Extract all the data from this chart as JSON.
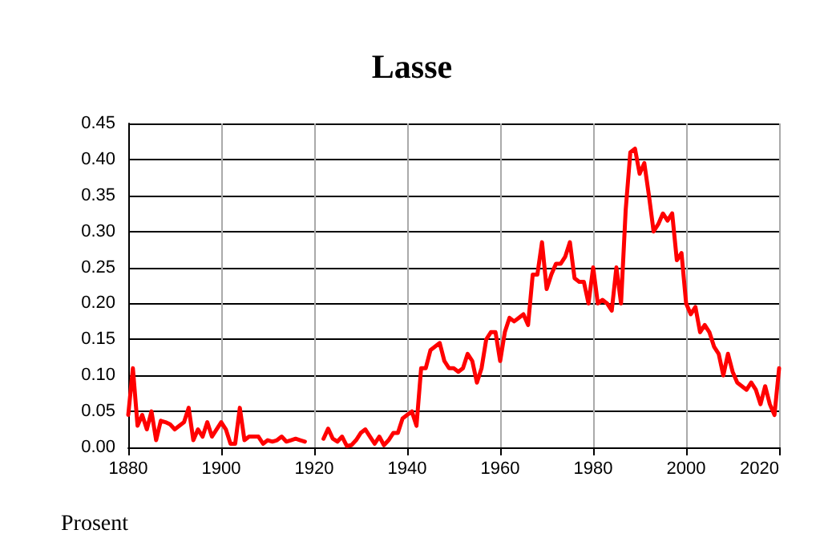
{
  "chart_data": {
    "type": "line",
    "title": "Lasse",
    "annotations": [
      "Prosent"
    ],
    "x": [
      1880,
      1881,
      1882,
      1883,
      1884,
      1885,
      1886,
      1887,
      1888,
      1889,
      1890,
      1891,
      1892,
      1893,
      1894,
      1895,
      1896,
      1897,
      1898,
      1899,
      1900,
      1901,
      1902,
      1903,
      1904,
      1905,
      1906,
      1907,
      1908,
      1909,
      1910,
      1911,
      1912,
      1913,
      1914,
      1915,
      1916,
      1917,
      1918,
      1919,
      1920,
      1921,
      1922,
      1923,
      1924,
      1925,
      1926,
      1927,
      1928,
      1929,
      1930,
      1931,
      1932,
      1933,
      1934,
      1935,
      1936,
      1937,
      1938,
      1939,
      1940,
      1941,
      1942,
      1943,
      1944,
      1945,
      1946,
      1947,
      1948,
      1949,
      1950,
      1951,
      1952,
      1953,
      1954,
      1955,
      1956,
      1957,
      1958,
      1959,
      1960,
      1961,
      1962,
      1963,
      1964,
      1965,
      1966,
      1967,
      1968,
      1969,
      1970,
      1971,
      1972,
      1973,
      1974,
      1975,
      1976,
      1977,
      1978,
      1979,
      1980,
      1981,
      1982,
      1983,
      1984,
      1985,
      1986,
      1987,
      1988,
      1989,
      1990,
      1991,
      1992,
      1993,
      1994,
      1995,
      1996,
      1997,
      1998,
      1999,
      2000,
      2001,
      2002,
      2003,
      2004,
      2005,
      2006,
      2007,
      2008,
      2009,
      2010,
      2011,
      2012,
      2013,
      2014,
      2015,
      2016,
      2017,
      2018,
      2019,
      2020
    ],
    "series": [
      {
        "color": "#ff0000",
        "values": [
          0.045,
          0.11,
          0.03,
          0.045,
          0.025,
          0.05,
          0.01,
          0.037,
          0.035,
          0.032,
          0.025,
          0.03,
          0.035,
          0.055,
          0.01,
          0.025,
          0.015,
          0.035,
          0.015,
          0.025,
          0.035,
          0.025,
          0.005,
          0.005,
          0.055,
          0.01,
          0.015,
          0.015,
          0.015,
          0.005,
          0.01,
          0.008,
          0.01,
          0.015,
          0.008,
          0.01,
          0.012,
          0.01,
          0.008,
          null,
          null,
          null,
          0.012,
          0.026,
          0.012,
          0.008,
          0.015,
          0.002,
          0.003,
          0.01,
          0.02,
          0.025,
          0.015,
          0.005,
          0.015,
          0.003,
          0.01,
          0.02,
          0.02,
          0.04,
          0.045,
          0.05,
          0.03,
          0.11,
          0.11,
          0.135,
          0.14,
          0.145,
          0.12,
          0.11,
          0.11,
          0.105,
          0.11,
          0.13,
          0.12,
          0.09,
          0.11,
          0.15,
          0.16,
          0.16,
          0.12,
          0.16,
          0.18,
          0.175,
          0.18,
          0.185,
          0.17,
          0.24,
          0.24,
          0.285,
          0.22,
          0.24,
          0.255,
          0.255,
          0.265,
          0.285,
          0.235,
          0.23,
          0.23,
          0.2,
          0.25,
          0.2,
          0.205,
          0.2,
          0.19,
          0.25,
          0.2,
          0.33,
          0.41,
          0.415,
          0.38,
          0.395,
          0.35,
          0.3,
          0.31,
          0.325,
          0.315,
          0.325,
          0.26,
          0.27,
          0.2,
          0.185,
          0.195,
          0.16,
          0.17,
          0.16,
          0.14,
          0.13,
          0.1,
          0.13,
          0.105,
          0.09,
          0.085,
          0.08,
          0.09,
          0.08,
          0.06,
          0.085,
          0.06,
          0.045,
          0.11
        ]
      }
    ],
    "xlim": [
      1880,
      2020
    ],
    "xticks": [
      1880,
      1900,
      1920,
      1940,
      1960,
      1980,
      2000,
      2020
    ],
    "ylim": [
      0,
      0.45
    ],
    "yticks": [
      {
        "value": 0,
        "label": "0.00"
      },
      0.05,
      {
        "value": 0.1,
        "label": "0.10"
      },
      0.15,
      {
        "value": 0.2,
        "label": "0.20"
      },
      0.25,
      {
        "value": 0.3,
        "label": "0.30"
      },
      0.35,
      {
        "value": 0.4,
        "label": "0.40"
      },
      0.45
    ],
    "grid": true,
    "marker": "none",
    "line_style": "solid"
  }
}
